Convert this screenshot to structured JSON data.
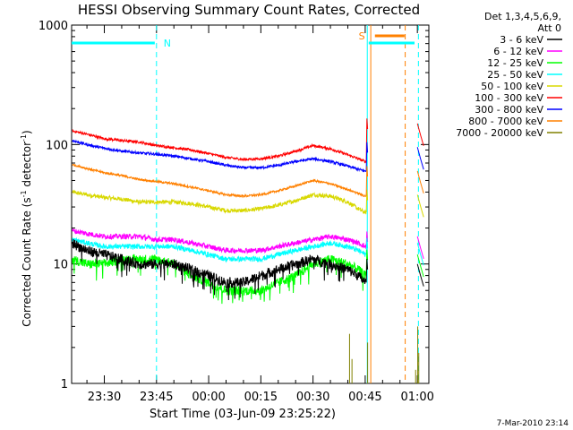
{
  "chart_data": {
    "type": "line",
    "title": "HESSI Observing Summary Count Rates, Corrected",
    "xlabel": "Start Time (03-Jun-09 23:25:22)",
    "ylabel_main": "Corrected Count Rate (s",
    "ylabel_sup1": "-1",
    "ylabel_mid": " detector",
    "ylabel_sup2": "-1",
    "ylabel_end": ")",
    "y_scale": "log",
    "ylim": [
      1,
      1000
    ],
    "y_ticks": [
      {
        "value": 1,
        "label": "1"
      },
      {
        "value": 10,
        "label": "10"
      },
      {
        "value": 100,
        "label": "100"
      },
      {
        "value": 1000,
        "label": "1000"
      }
    ],
    "x_range_minutes": [
      -4.4,
      98.3
    ],
    "x_ticks": [
      {
        "minute": 5,
        "label": "23:30"
      },
      {
        "minute": 20,
        "label": "23:45"
      },
      {
        "minute": 35,
        "label": "00:00"
      },
      {
        "minute": 50,
        "label": "00:15"
      },
      {
        "minute": 65,
        "label": "00:30"
      },
      {
        "minute": 80,
        "label": "00:45"
      },
      {
        "minute": 95,
        "label": "01:00"
      }
    ],
    "legend_header": [
      "Det 1,3,4,5,6,9,",
      "Att 0"
    ],
    "legend_placement": "right",
    "series": [
      {
        "name": "3 - 6 keV",
        "color": "#000000",
        "noise": 0.1,
        "spike": 10,
        "points": [
          [
            -4.2,
            15
          ],
          [
            0,
            13
          ],
          [
            5,
            12
          ],
          [
            10,
            11
          ],
          [
            15,
            10
          ],
          [
            20,
            10
          ],
          [
            25,
            10
          ],
          [
            30,
            9
          ],
          [
            35,
            8
          ],
          [
            40,
            7
          ],
          [
            45,
            7
          ],
          [
            50,
            8
          ],
          [
            55,
            9
          ],
          [
            60,
            10
          ],
          [
            65,
            11
          ],
          [
            70,
            10
          ],
          [
            75,
            9
          ],
          [
            78,
            8
          ],
          [
            80,
            7
          ],
          [
            80.3,
            7
          ]
        ]
      },
      {
        "name": "6 - 12 keV",
        "color": "#ff00ff",
        "noise": 0.05,
        "spike": 17,
        "points": [
          [
            -4.2,
            19
          ],
          [
            0,
            18
          ],
          [
            5,
            17
          ],
          [
            10,
            17
          ],
          [
            15,
            17
          ],
          [
            20,
            16
          ],
          [
            25,
            16
          ],
          [
            30,
            15
          ],
          [
            35,
            14
          ],
          [
            40,
            13
          ],
          [
            45,
            13
          ],
          [
            50,
            13
          ],
          [
            55,
            14
          ],
          [
            60,
            15
          ],
          [
            65,
            16
          ],
          [
            70,
            17
          ],
          [
            75,
            16
          ],
          [
            78,
            15
          ],
          [
            80,
            14
          ],
          [
            80.3,
            14
          ]
        ]
      },
      {
        "name": "12 - 25 keV",
        "color": "#00ff00",
        "noise": 0.09,
        "spike": 12,
        "points": [
          [
            -4.2,
            11
          ],
          [
            0,
            10
          ],
          [
            5,
            10
          ],
          [
            10,
            11
          ],
          [
            15,
            11
          ],
          [
            20,
            11
          ],
          [
            25,
            10
          ],
          [
            30,
            8
          ],
          [
            35,
            7
          ],
          [
            40,
            6
          ],
          [
            45,
            6
          ],
          [
            50,
            6
          ],
          [
            55,
            7
          ],
          [
            60,
            8
          ],
          [
            65,
            10
          ],
          [
            70,
            11
          ],
          [
            75,
            10
          ],
          [
            78,
            9
          ],
          [
            80,
            8
          ],
          [
            80.3,
            8
          ]
        ]
      },
      {
        "name": "25 - 50 keV",
        "color": "#00ffff",
        "noise": 0.05,
        "spike": 15,
        "points": [
          [
            -4.2,
            16
          ],
          [
            0,
            15
          ],
          [
            5,
            14
          ],
          [
            10,
            14
          ],
          [
            15,
            14
          ],
          [
            20,
            14
          ],
          [
            25,
            14
          ],
          [
            30,
            13
          ],
          [
            35,
            12
          ],
          [
            40,
            11
          ],
          [
            45,
            11
          ],
          [
            50,
            11
          ],
          [
            55,
            12
          ],
          [
            60,
            13
          ],
          [
            65,
            14
          ],
          [
            70,
            15
          ],
          [
            75,
            14
          ],
          [
            78,
            13
          ],
          [
            80,
            12
          ],
          [
            80.3,
            12
          ]
        ]
      },
      {
        "name": "50 - 100 keV",
        "color": "#d8d800",
        "noise": 0.04,
        "spike": 38,
        "points": [
          [
            -4.2,
            40
          ],
          [
            0,
            38
          ],
          [
            5,
            36
          ],
          [
            10,
            35
          ],
          [
            15,
            33
          ],
          [
            20,
            33
          ],
          [
            25,
            33
          ],
          [
            30,
            32
          ],
          [
            35,
            30
          ],
          [
            40,
            28
          ],
          [
            45,
            28
          ],
          [
            50,
            29
          ],
          [
            55,
            31
          ],
          [
            60,
            34
          ],
          [
            65,
            38
          ],
          [
            70,
            37
          ],
          [
            75,
            33
          ],
          [
            78,
            29
          ],
          [
            80,
            27
          ],
          [
            80.3,
            27
          ]
        ]
      },
      {
        "name": "100 - 300 keV",
        "color": "#ff0000",
        "noise": 0.025,
        "spike": 150,
        "points": [
          [
            -4.2,
            130
          ],
          [
            0,
            122
          ],
          [
            5,
            112
          ],
          [
            10,
            108
          ],
          [
            15,
            105
          ],
          [
            20,
            98
          ],
          [
            25,
            94
          ],
          [
            30,
            90
          ],
          [
            35,
            84
          ],
          [
            40,
            78
          ],
          [
            45,
            75
          ],
          [
            50,
            76
          ],
          [
            55,
            80
          ],
          [
            60,
            88
          ],
          [
            65,
            98
          ],
          [
            70,
            92
          ],
          [
            75,
            82
          ],
          [
            78,
            76
          ],
          [
            80,
            72
          ],
          [
            80.3,
            72
          ]
        ]
      },
      {
        "name": "300 - 800 keV",
        "color": "#0000ff",
        "noise": 0.025,
        "spike": 95,
        "points": [
          [
            -4.2,
            108
          ],
          [
            0,
            100
          ],
          [
            5,
            93
          ],
          [
            10,
            88
          ],
          [
            15,
            85
          ],
          [
            20,
            83
          ],
          [
            25,
            80
          ],
          [
            30,
            76
          ],
          [
            35,
            72
          ],
          [
            40,
            67
          ],
          [
            45,
            64
          ],
          [
            50,
            64
          ],
          [
            55,
            67
          ],
          [
            60,
            72
          ],
          [
            65,
            76
          ],
          [
            70,
            72
          ],
          [
            75,
            66
          ],
          [
            78,
            62
          ],
          [
            80,
            60
          ],
          [
            80.3,
            60
          ]
        ]
      },
      {
        "name": "800 - 7000 keV",
        "color": "#ff8000",
        "noise": 0.02,
        "spike": 60,
        "points": [
          [
            -4.2,
            68
          ],
          [
            0,
            63
          ],
          [
            5,
            58
          ],
          [
            10,
            55
          ],
          [
            15,
            51
          ],
          [
            20,
            49
          ],
          [
            25,
            47
          ],
          [
            30,
            44
          ],
          [
            35,
            41
          ],
          [
            40,
            38
          ],
          [
            45,
            37
          ],
          [
            50,
            38
          ],
          [
            55,
            41
          ],
          [
            60,
            45
          ],
          [
            65,
            50
          ],
          [
            70,
            47
          ],
          [
            75,
            42
          ],
          [
            78,
            39
          ],
          [
            80,
            37
          ],
          [
            80.3,
            37
          ]
        ]
      },
      {
        "name": "7000 - 20000 keV",
        "color": "#808000",
        "noise": 0,
        "spike": 0,
        "points": []
      }
    ],
    "markers": [
      {
        "label": "N",
        "color": "#00ffff"
      },
      {
        "label": "S",
        "color": "#ff8000"
      }
    ],
    "vertical_lines": [
      {
        "minute": 20,
        "color": "#00ffff",
        "dashed": true
      },
      {
        "minute": 80.6,
        "color": "#00ffff",
        "dashed": false
      },
      {
        "minute": 81.6,
        "color": "#ff8000",
        "dashed": false
      },
      {
        "minute": 91.5,
        "color": "#ff8000",
        "dashed": true
      },
      {
        "minute": 95.3,
        "color": "#00ffff",
        "dashed": true
      }
    ],
    "spike_series_at_end": true
  },
  "footer_date": "7-Mar-2010 23:14"
}
